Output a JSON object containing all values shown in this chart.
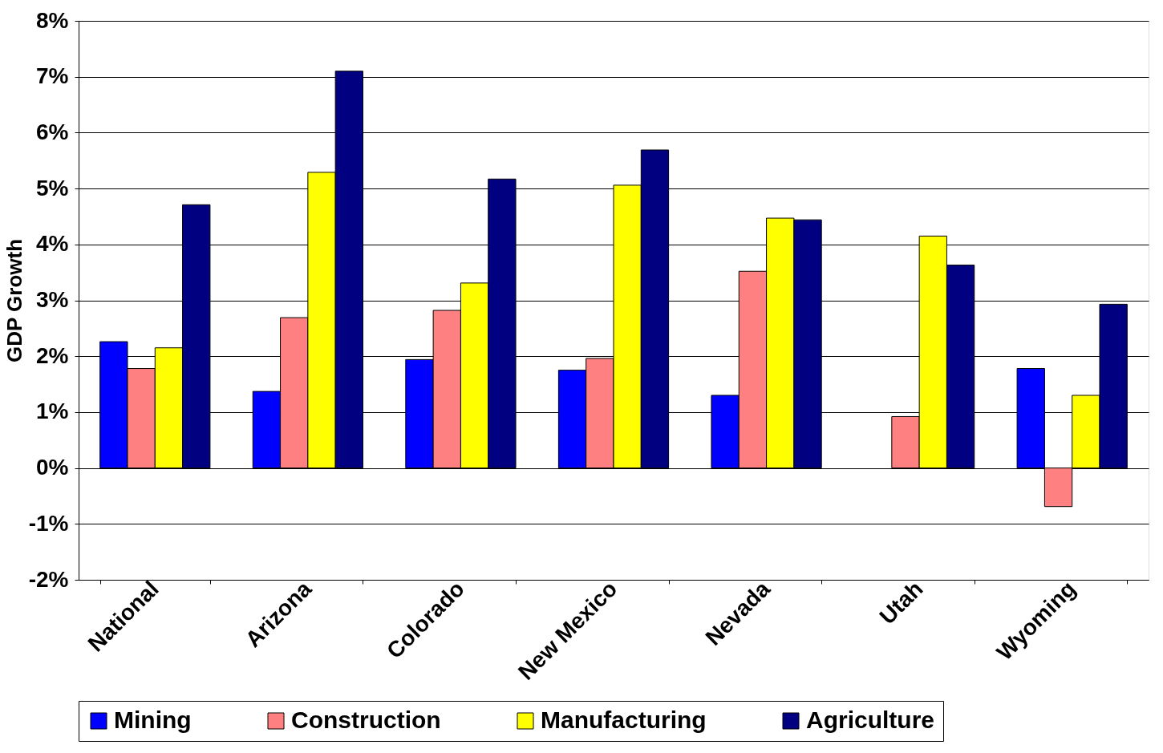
{
  "chart_data": {
    "type": "bar",
    "ylabel": "GDP Growth",
    "categories": [
      "National",
      "Arizona",
      "Colorado",
      "New Mexico",
      "Nevada",
      "Utah",
      "Wyoming"
    ],
    "series": [
      {
        "name": "Mining",
        "color": "#0000ff",
        "values": [
          2.26,
          1.37,
          1.94,
          1.75,
          1.3,
          null,
          1.78
        ]
      },
      {
        "name": "Construction",
        "color": "#ff8080",
        "values": [
          1.78,
          2.69,
          2.82,
          1.96,
          3.52,
          0.92,
          -0.69
        ]
      },
      {
        "name": "Manufacturing",
        "color": "#ffff00",
        "values": [
          2.15,
          5.29,
          3.31,
          5.06,
          4.47,
          4.15,
          1.3
        ]
      },
      {
        "name": "Agriculture",
        "color": "#000080",
        "values": [
          4.71,
          7.1,
          5.17,
          5.69,
          4.44,
          3.63,
          2.93
        ]
      }
    ],
    "ylim": [
      -2,
      8
    ],
    "yticks": [
      {
        "value": -2,
        "label": "-2%"
      },
      {
        "value": -1,
        "label": "-1%"
      },
      {
        "value": 0,
        "label": "0%"
      },
      {
        "value": 1,
        "label": "1%"
      },
      {
        "value": 2,
        "label": "2%"
      },
      {
        "value": 3,
        "label": "3%"
      },
      {
        "value": 4,
        "label": "4%"
      },
      {
        "value": 5,
        "label": "5%"
      },
      {
        "value": 6,
        "label": "6%"
      },
      {
        "value": 7,
        "label": "7%"
      },
      {
        "value": 8,
        "label": "8%"
      }
    ],
    "grid": "y",
    "legend": "bottom"
  }
}
